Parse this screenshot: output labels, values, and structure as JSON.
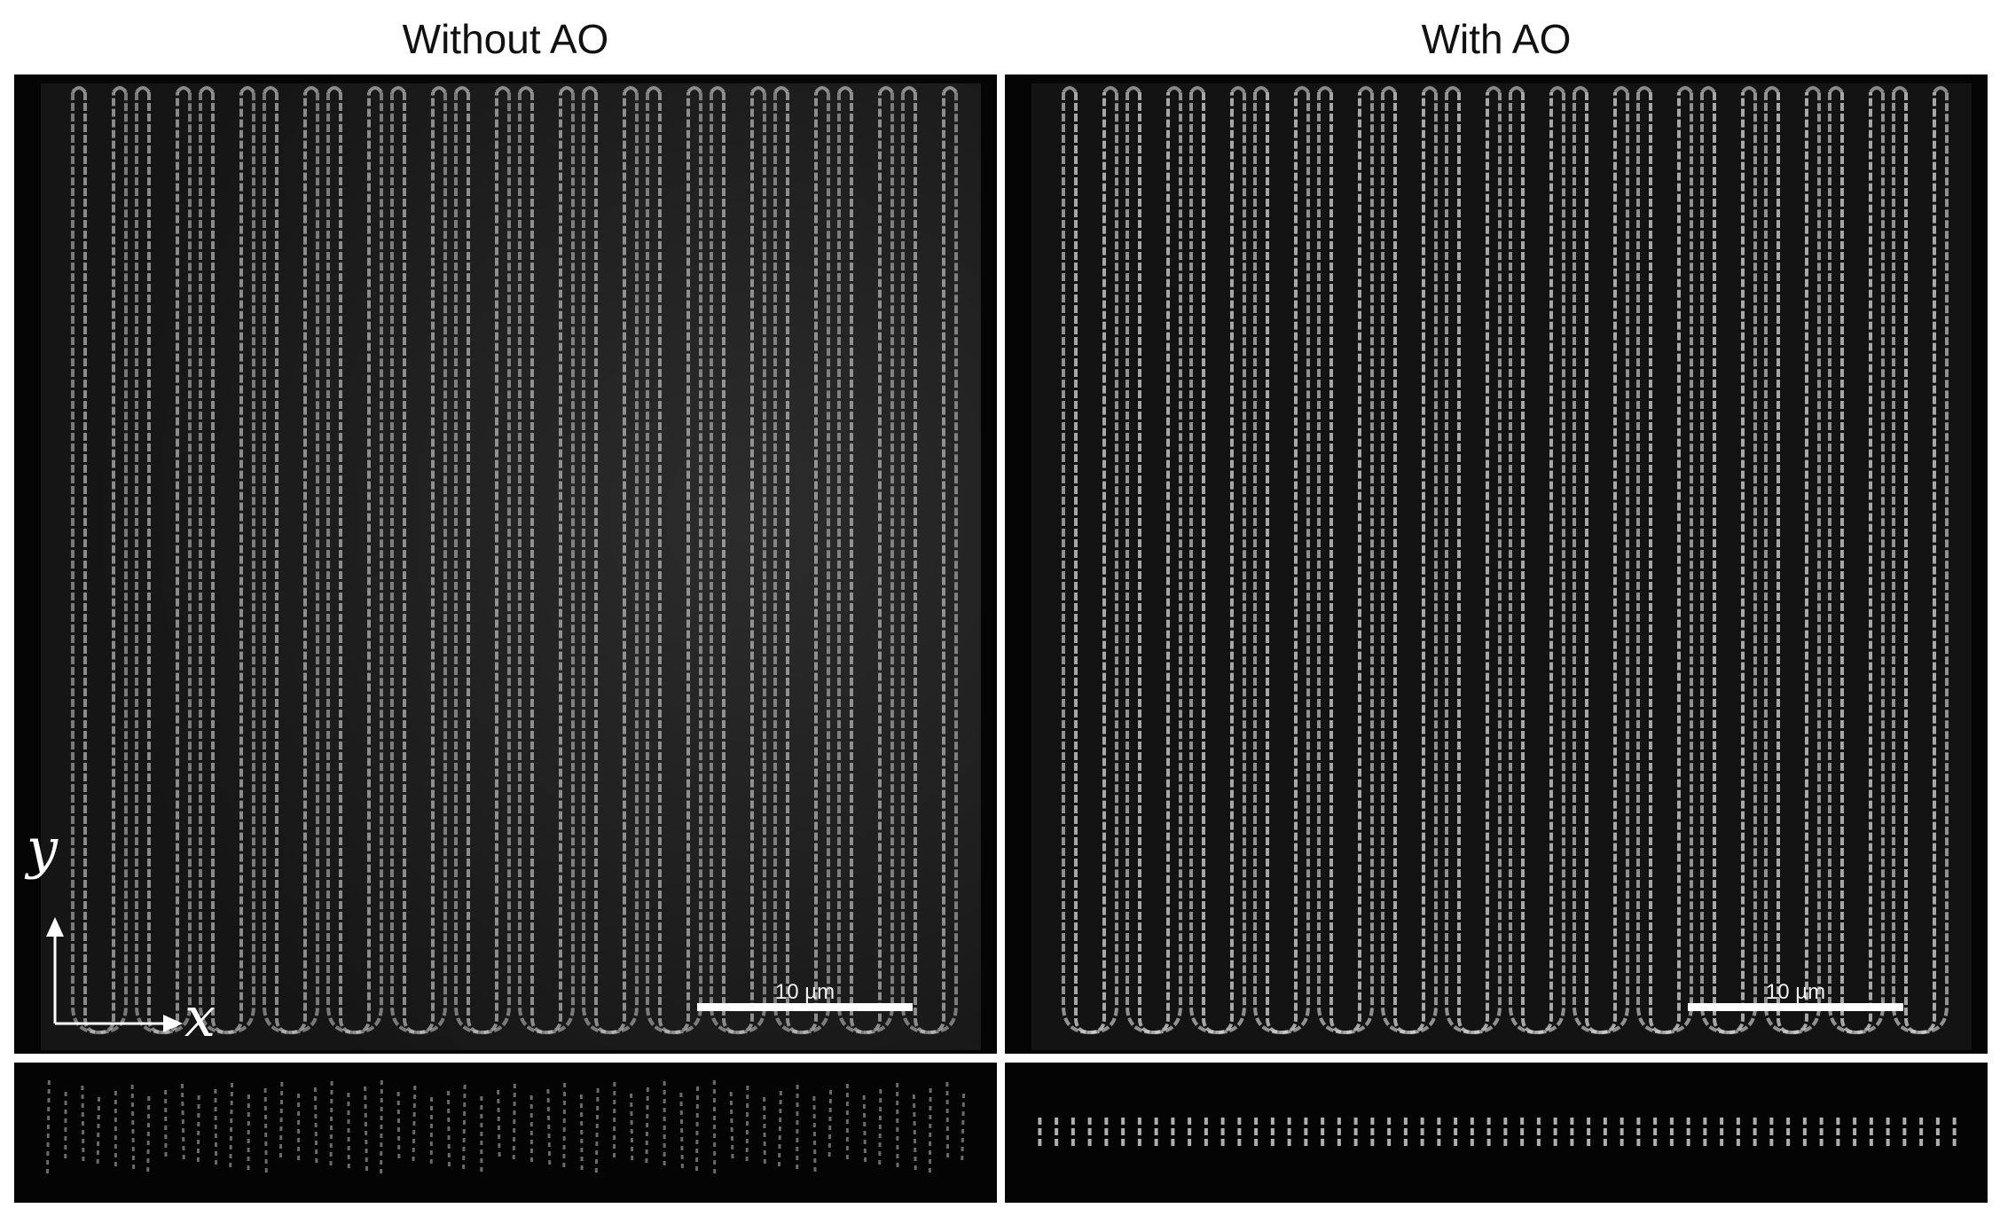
{
  "panels": {
    "left": {
      "title": "Without AO",
      "scalebar_label": "10 µm"
    },
    "right": {
      "title": "With AO",
      "scalebar_label": "10 µm"
    }
  },
  "axes": {
    "x_label": "x",
    "y_label": "y"
  },
  "stripe_count": 14,
  "colors": {
    "background": "#050505",
    "stripe": "#d9d9d9",
    "page": "#ffffff"
  }
}
